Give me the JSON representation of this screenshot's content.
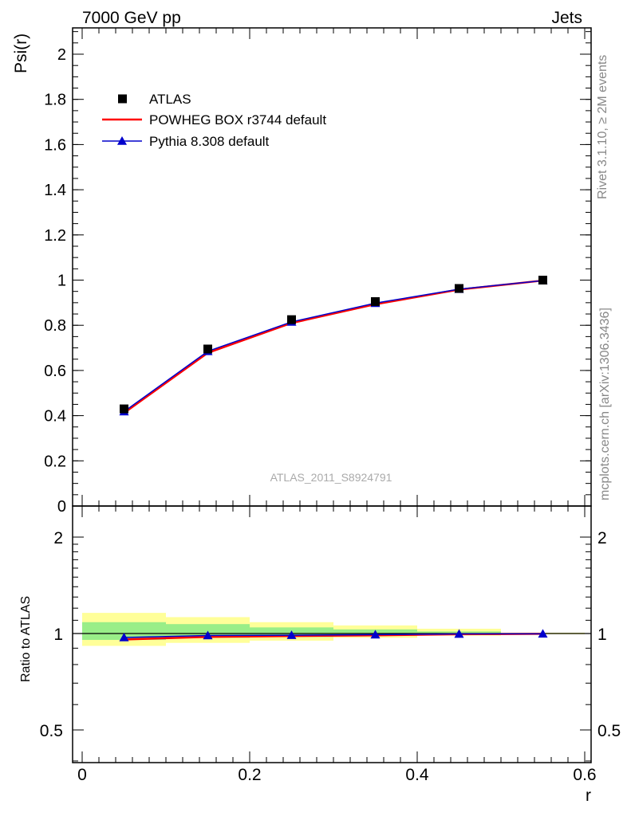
{
  "header": {
    "left": "7000 GeV pp",
    "right": "Jets"
  },
  "side_labels": {
    "top": "Rivet 3.1.10, ≥ 2M events",
    "bottom": "mcplots.cern.ch [arXiv:1306.3436]"
  },
  "watermark": "ATLAS_2011_S8924791",
  "legend": [
    {
      "label": "ATLAS",
      "marker": "square",
      "color": "#000000"
    },
    {
      "label": "POWHEG BOX r3744 default",
      "marker": "line",
      "color": "#ff0000"
    },
    {
      "label": "Pythia 8.308 default",
      "marker": "triangle",
      "color": "#0000cc"
    }
  ],
  "chart_data": [
    {
      "type": "line",
      "ylabel": "Psi(r)",
      "xlim": [
        0,
        0.6
      ],
      "ylim": [
        0,
        2.1
      ],
      "y_ticks": [
        0,
        0.2,
        0.4,
        0.6,
        0.8,
        1,
        1.2,
        1.4,
        1.6,
        1.8,
        2
      ],
      "y_tick_labels": [
        "0",
        "0.2",
        "0.4",
        "0.6",
        "0.8",
        "1",
        "1.2",
        "1.4",
        "1.6",
        "1.8",
        "2"
      ],
      "x": [
        0.05,
        0.15,
        0.25,
        0.35,
        0.45,
        0.55
      ],
      "series": [
        {
          "name": "ATLAS",
          "values": [
            0.43,
            0.695,
            0.825,
            0.905,
            0.963,
            1.0
          ],
          "color": "#000000"
        },
        {
          "name": "POWHEG BOX r3744 default",
          "values": [
            0.412,
            0.678,
            0.81,
            0.893,
            0.958,
            0.998
          ],
          "color": "#ff0000"
        },
        {
          "name": "Pythia 8.308 default",
          "values": [
            0.418,
            0.685,
            0.815,
            0.898,
            0.96,
            0.998
          ],
          "color": "#0000cc"
        }
      ]
    },
    {
      "type": "line",
      "xlabel": "r",
      "ylabel": "Ratio to ATLAS",
      "xlim": [
        0,
        0.6
      ],
      "y_scale": "log",
      "ylim": [
        0.39,
        2.3
      ],
      "x_ticks": [
        0,
        0.2,
        0.4,
        0.6
      ],
      "x_tick_labels": [
        "0",
        "0.2",
        "0.4",
        "0.6"
      ],
      "y_ticks": [
        0.5,
        1,
        2
      ],
      "y_tick_labels": [
        "0.5",
        "1",
        "2"
      ],
      "bins": [
        [
          0,
          0.1
        ],
        [
          0.1,
          0.2
        ],
        [
          0.2,
          0.3
        ],
        [
          0.3,
          0.4
        ],
        [
          0.4,
          0.5
        ],
        [
          0.5,
          0.6
        ]
      ],
      "band_inner": [
        [
          0.955,
          1.085
        ],
        [
          0.97,
          1.07
        ],
        [
          0.975,
          1.045
        ],
        [
          0.985,
          1.03
        ],
        [
          0.992,
          1.015
        ],
        [
          0.998,
          1.003
        ]
      ],
      "band_outer": [
        [
          0.915,
          1.16
        ],
        [
          0.935,
          1.125
        ],
        [
          0.95,
          1.085
        ],
        [
          0.97,
          1.06
        ],
        [
          0.985,
          1.035
        ],
        [
          0.995,
          1.006
        ]
      ],
      "x": [
        0.05,
        0.15,
        0.25,
        0.35,
        0.45,
        0.55
      ],
      "series": [
        {
          "name": "POWHEG BOX r3744 default",
          "values": [
            0.958,
            0.976,
            0.982,
            0.987,
            0.995,
            0.998
          ],
          "color": "#ff0000"
        },
        {
          "name": "Pythia 8.308 default",
          "values": [
            0.972,
            0.986,
            0.988,
            0.992,
            0.997,
            0.998
          ],
          "color": "#0000cc"
        }
      ]
    }
  ]
}
